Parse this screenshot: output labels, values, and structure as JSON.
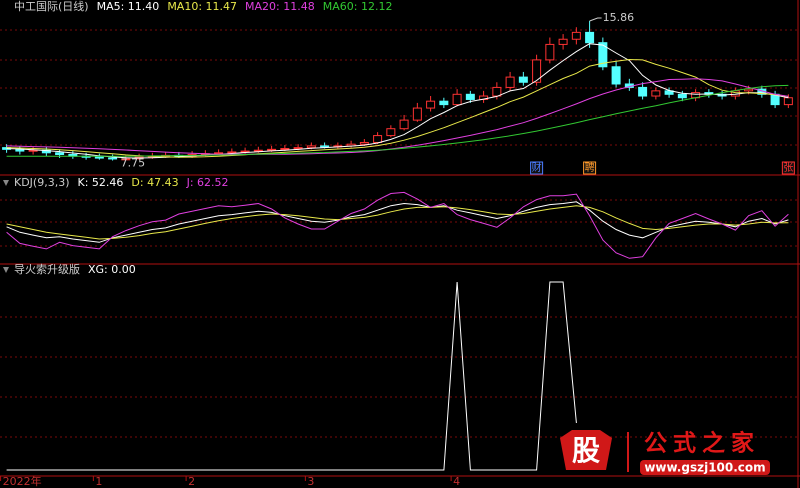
{
  "chart_data": [
    {
      "type": "candlestick",
      "title": "中工国际(日线)",
      "open": [
        8.5,
        8.4,
        8.3,
        8.35,
        8.2,
        8.1,
        8.0,
        7.95,
        7.9,
        7.8,
        7.85,
        7.95,
        8.0,
        8.05,
        8.0,
        8.1,
        8.15,
        8.2,
        8.25,
        8.3,
        8.35,
        8.4,
        8.45,
        8.5,
        8.6,
        8.55,
        8.6,
        8.7,
        8.8,
        9.2,
        9.6,
        10.1,
        10.8,
        11.2,
        11.0,
        11.6,
        11.3,
        11.5,
        12.0,
        12.6,
        12.3,
        13.6,
        14.5,
        14.8,
        15.2,
        14.6,
        13.2,
        12.2,
        12.0,
        11.5,
        11.8,
        11.6,
        11.4,
        11.7,
        11.6,
        11.5,
        11.8,
        11.9,
        11.6,
        11.0
      ],
      "high": [
        8.7,
        8.6,
        8.55,
        8.55,
        8.4,
        8.3,
        8.2,
        8.15,
        8.1,
        8.05,
        8.15,
        8.2,
        8.25,
        8.25,
        8.3,
        8.35,
        8.4,
        8.45,
        8.5,
        8.55,
        8.6,
        8.65,
        8.7,
        8.8,
        8.8,
        8.8,
        8.9,
        9.0,
        9.4,
        9.8,
        10.4,
        11.1,
        11.5,
        11.4,
        11.9,
        11.8,
        11.8,
        12.3,
        12.9,
        12.9,
        13.9,
        14.9,
        15.1,
        15.5,
        15.86,
        14.9,
        13.5,
        12.5,
        12.3,
        12.0,
        12.0,
        11.8,
        11.9,
        11.9,
        11.8,
        12.0,
        12.1,
        12.1,
        11.8,
        11.6
      ],
      "low": [
        8.2,
        8.1,
        8.1,
        8.0,
        7.9,
        7.85,
        7.8,
        7.8,
        7.75,
        7.8,
        7.8,
        7.85,
        7.9,
        7.9,
        7.9,
        8.0,
        8.05,
        8.1,
        8.15,
        8.2,
        8.25,
        8.3,
        8.35,
        8.4,
        8.45,
        8.45,
        8.5,
        8.6,
        8.7,
        9.1,
        9.5,
        10.0,
        10.6,
        10.8,
        10.9,
        11.1,
        11.1,
        11.3,
        11.8,
        12.1,
        12.1,
        13.4,
        14.2,
        14.5,
        14.3,
        13.0,
        12.0,
        11.8,
        11.3,
        11.3,
        11.4,
        11.2,
        11.2,
        11.4,
        11.3,
        11.3,
        11.6,
        11.4,
        10.8,
        10.8
      ],
      "close": [
        8.4,
        8.3,
        8.35,
        8.2,
        8.1,
        8.0,
        7.95,
        7.9,
        7.85,
        7.85,
        7.95,
        8.0,
        8.05,
        8.0,
        8.1,
        8.15,
        8.2,
        8.25,
        8.3,
        8.35,
        8.4,
        8.45,
        8.5,
        8.6,
        8.55,
        8.6,
        8.7,
        8.8,
        9.2,
        9.6,
        10.1,
        10.8,
        11.2,
        11.0,
        11.6,
        11.3,
        11.5,
        12.0,
        12.6,
        12.3,
        13.6,
        14.5,
        14.8,
        15.2,
        14.6,
        13.2,
        12.2,
        12.0,
        11.5,
        11.8,
        11.6,
        11.4,
        11.7,
        11.6,
        11.5,
        11.8,
        11.9,
        11.6,
        11.0,
        11.4
      ],
      "up_color": "#ff3232",
      "down_color": "#54ffff",
      "series": [
        {
          "name": "MA5",
          "legend_label": "MA5: 11.40",
          "color": "#ffffff",
          "values": [
            8.45,
            8.42,
            8.38,
            8.33,
            8.27,
            8.19,
            8.12,
            8.02,
            7.96,
            7.91,
            7.9,
            7.91,
            7.94,
            7.97,
            8.02,
            8.06,
            8.1,
            8.16,
            8.22,
            8.26,
            8.31,
            8.35,
            8.4,
            8.46,
            8.5,
            8.54,
            8.59,
            8.65,
            8.77,
            8.98,
            9.26,
            9.7,
            10.18,
            10.54,
            10.94,
            11.18,
            11.32,
            11.48,
            11.8,
            11.94,
            12.4,
            13.0,
            13.56,
            14.08,
            14.54,
            14.46,
            14.0,
            13.56,
            12.7,
            12.14,
            11.82,
            11.66,
            11.6,
            11.62,
            11.56,
            11.6,
            11.7,
            11.68,
            11.56,
            11.4
          ]
        },
        {
          "name": "MA10",
          "legend_label": "MA10: 11.47",
          "color": "#e8e84a",
          "values": [
            8.5,
            8.48,
            8.45,
            8.42,
            8.38,
            8.33,
            8.27,
            8.2,
            8.14,
            8.08,
            8.03,
            7.99,
            7.96,
            7.94,
            7.95,
            7.97,
            8.0,
            8.04,
            8.09,
            8.14,
            8.18,
            8.23,
            8.28,
            8.33,
            8.38,
            8.42,
            8.47,
            8.52,
            8.62,
            8.76,
            8.93,
            9.15,
            9.4,
            9.66,
            9.95,
            10.24,
            10.54,
            10.84,
            11.17,
            11.44,
            11.8,
            12.16,
            12.52,
            12.82,
            13.24,
            13.4,
            13.52,
            13.62,
            13.6,
            13.34,
            13.12,
            12.86,
            12.6,
            12.16,
            11.84,
            11.7,
            11.68,
            11.64,
            11.58,
            11.47
          ]
        },
        {
          "name": "MA20",
          "legend_label": "MA20: 11.48",
          "color": "#e040e0",
          "values": [
            8.6,
            8.58,
            8.56,
            8.54,
            8.52,
            8.49,
            8.46,
            8.43,
            8.4,
            8.36,
            8.32,
            8.28,
            8.24,
            8.2,
            8.17,
            8.14,
            8.12,
            8.11,
            8.11,
            8.11,
            8.11,
            8.12,
            8.13,
            8.15,
            8.17,
            8.19,
            8.22,
            8.26,
            8.33,
            8.42,
            8.52,
            8.64,
            8.77,
            8.91,
            9.06,
            9.21,
            9.38,
            9.55,
            9.75,
            9.95,
            10.2,
            10.48,
            10.76,
            11.04,
            11.35,
            11.62,
            11.85,
            12.05,
            12.22,
            12.34,
            12.46,
            12.48,
            12.5,
            12.46,
            12.38,
            12.2,
            12.0,
            11.8,
            11.6,
            11.48
          ]
        },
        {
          "name": "MA60",
          "legend_label": "MA60: 12.12",
          "color": "#32c832",
          "values": [
            8.0,
            8.0,
            8.0,
            8.0,
            8.0,
            8.0,
            8.0,
            8.0,
            8.0,
            8.0,
            8.01,
            8.02,
            8.03,
            8.04,
            8.05,
            8.06,
            8.07,
            8.08,
            8.1,
            8.12,
            8.14,
            8.16,
            8.18,
            8.2,
            8.22,
            8.25,
            8.28,
            8.31,
            8.35,
            8.4,
            8.46,
            8.53,
            8.6,
            8.68,
            8.77,
            8.86,
            8.96,
            9.07,
            9.19,
            9.32,
            9.46,
            9.62,
            9.78,
            9.95,
            10.13,
            10.3,
            10.47,
            10.63,
            10.79,
            10.94,
            11.1,
            11.25,
            11.4,
            11.55,
            11.7,
            11.82,
            11.94,
            12.04,
            12.1,
            12.12
          ]
        }
      ],
      "max_label": "15.86",
      "min_label": "7.75",
      "events": [
        {
          "index": 40,
          "text": "财",
          "color": "#4a7cff"
        },
        {
          "index": 44,
          "text": "聘",
          "color": "#ff9a2a"
        },
        {
          "index": 59,
          "text": "张",
          "color": "#ff3232"
        }
      ],
      "ylim": [
        7.2,
        16.5
      ]
    },
    {
      "type": "line",
      "title": "KDJ(9,3,3)",
      "series": [
        {
          "name": "K",
          "legend_label": "K: 52.46",
          "color": "#ffffff",
          "values": [
            40,
            30,
            25,
            20,
            22,
            18,
            15,
            12,
            20,
            25,
            30,
            35,
            38,
            45,
            50,
            55,
            60,
            62,
            65,
            68,
            66,
            60,
            55,
            50,
            48,
            52,
            58,
            62,
            70,
            78,
            82,
            80,
            75,
            78,
            70,
            65,
            60,
            55,
            60,
            68,
            75,
            80,
            82,
            85,
            70,
            50,
            35,
            25,
            20,
            30,
            40,
            45,
            50,
            48,
            45,
            40,
            50,
            55,
            45,
            52.46
          ]
        },
        {
          "name": "D",
          "legend_label": "D: 47.43",
          "color": "#e8e84a",
          "values": [
            45,
            40,
            35,
            30,
            27,
            24,
            21,
            18,
            19,
            21,
            24,
            28,
            31,
            36,
            41,
            46,
            51,
            55,
            58,
            61,
            63,
            62,
            60,
            57,
            54,
            53,
            55,
            57,
            61,
            67,
            72,
            75,
            75,
            76,
            74,
            71,
            67,
            63,
            62,
            64,
            68,
            72,
            75,
            78,
            75,
            67,
            56,
            46,
            37,
            35,
            37,
            40,
            43,
            45,
            45,
            43,
            45,
            48,
            47,
            47.43
          ]
        },
        {
          "name": "J",
          "legend_label": "J: 62.52",
          "color": "#e040e0",
          "values": [
            30,
            10,
            5,
            0,
            12,
            6,
            3,
            0,
            22,
            33,
            42,
            49,
            52,
            63,
            68,
            73,
            78,
            76,
            79,
            82,
            72,
            56,
            45,
            36,
            36,
            50,
            64,
            72,
            88,
            100,
            102,
            90,
            75,
            82,
            62,
            53,
            46,
            39,
            56,
            76,
            89,
            96,
            96,
            99,
            60,
            16,
            -7,
            -17,
            -14,
            20,
            46,
            55,
            64,
            54,
            45,
            34,
            60,
            69,
            41,
            62.52
          ]
        }
      ],
      "ylim": [
        -20,
        110
      ]
    },
    {
      "type": "line",
      "title": "导火索升级版",
      "categories": [
        "2022年",
        null,
        null,
        null,
        null,
        null,
        null,
        "1",
        null,
        null,
        null,
        null,
        null,
        null,
        "2",
        null,
        null,
        null,
        null,
        null,
        null,
        null,
        null,
        "3",
        null,
        null,
        null,
        null,
        null,
        null,
        null,
        null,
        null,
        null,
        "4",
        null,
        null,
        null,
        null,
        null,
        null,
        null,
        null,
        null,
        null,
        null,
        null,
        null,
        null,
        null,
        null,
        null,
        null,
        null,
        null,
        null,
        null,
        null,
        null,
        null
      ],
      "series": [
        {
          "name": "XG",
          "legend_label": "XG: 0.00",
          "color": "#ffffff",
          "values": [
            0,
            0,
            0,
            0,
            0,
            0,
            0,
            0,
            0,
            0,
            0,
            0,
            0,
            0,
            0,
            0,
            0,
            0,
            0,
            0,
            0,
            0,
            0,
            0,
            0,
            0,
            0,
            0,
            0,
            0,
            0,
            0,
            0,
            0,
            1,
            0,
            0,
            0,
            0,
            0,
            0,
            1,
            1,
            0.25,
            null,
            null,
            null,
            null,
            null,
            null,
            null,
            null,
            null,
            null,
            null,
            null,
            null,
            null,
            null,
            null
          ]
        }
      ],
      "ylim": [
        0,
        1
      ]
    }
  ],
  "watermark": {
    "icon": "股",
    "name": "公式之家",
    "url": "www.gszj100.com"
  }
}
